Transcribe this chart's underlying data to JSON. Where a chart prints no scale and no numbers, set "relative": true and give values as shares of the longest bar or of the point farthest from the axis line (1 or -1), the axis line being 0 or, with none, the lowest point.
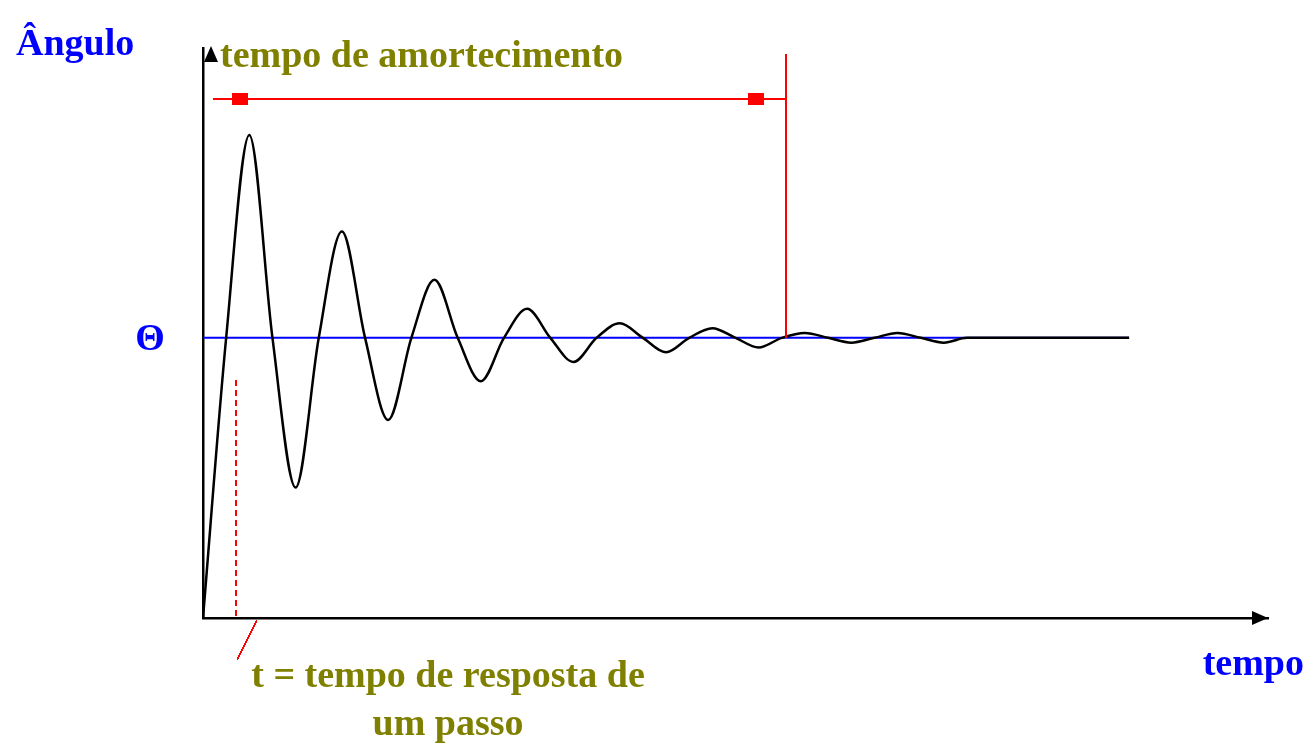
{
  "chart_data": {
    "type": "line",
    "relative": true,
    "ylabel": "Ângulo",
    "xlabel": "tempo",
    "categories": [
      null,
      null,
      null,
      null,
      null,
      null,
      null,
      null,
      null,
      null,
      null,
      null,
      null,
      null,
      null,
      null,
      null,
      null,
      null,
      null,
      null,
      null,
      null,
      null,
      null,
      null,
      null,
      null,
      null,
      null,
      null,
      null,
      null,
      null,
      null,
      null,
      null,
      null,
      null,
      null,
      null,
      null,
      null,
      null,
      null,
      null,
      null
    ],
    "series": [
      {
        "color": "#000000",
        "values": [
          0,
          0.58,
          1.0,
          0.58,
          0.27,
          0.58,
          0.8,
          0.58,
          0.41,
          0.58,
          0.7,
          0.58,
          0.49,
          0.58,
          0.64,
          0.58,
          0.53,
          0.58,
          0.61,
          0.58,
          0.55,
          0.58,
          0.6,
          0.58,
          0.56,
          0.58,
          0.59,
          0.58,
          0.57,
          0.58,
          0.59,
          0.58,
          0.57,
          0.58,
          0.58,
          0.58,
          0.58,
          0.58,
          0.58,
          0.58,
          0.58,
          null,
          null,
          null,
          null,
          null,
          null
        ]
      }
    ],
    "ref_lines": [
      {
        "axis": "y",
        "value": 0.58,
        "label": "Θ",
        "color": "#0000ff"
      }
    ],
    "annotations": [
      "tempo de amortecimento",
      "t = tempo de resposta de um passo"
    ],
    "grid": false,
    "legend": false,
    "marker": "none",
    "line_style": "solid"
  }
}
